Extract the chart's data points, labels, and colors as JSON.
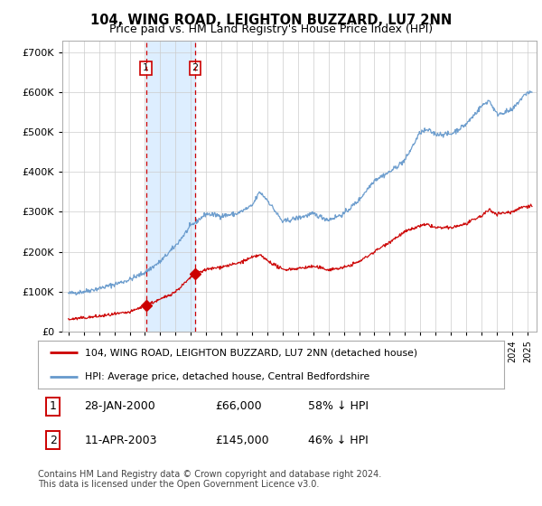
{
  "title": "104, WING ROAD, LEIGHTON BUZZARD, LU7 2NN",
  "subtitle": "Price paid vs. HM Land Registry's House Price Index (HPI)",
  "ytick_values": [
    0,
    100000,
    200000,
    300000,
    400000,
    500000,
    600000,
    700000
  ],
  "ytick_labels": [
    "£0",
    "£100K",
    "£200K",
    "£300K",
    "£400K",
    "£500K",
    "£600K",
    "£700K"
  ],
  "ylim": [
    0,
    730000
  ],
  "xlim_start": 1994.6,
  "xlim_end": 2025.6,
  "legend_line1": "104, WING ROAD, LEIGHTON BUZZARD, LU7 2NN (detached house)",
  "legend_line2": "HPI: Average price, detached house, Central Bedfordshire",
  "sale1_date_label": "28-JAN-2000",
  "sale1_price_label": "£66,000",
  "sale1_pct_label": "58% ↓ HPI",
  "sale1_year": 2000.07,
  "sale1_price": 66000,
  "sale2_date_label": "11-APR-2003",
  "sale2_price_label": "£145,000",
  "sale2_pct_label": "46% ↓ HPI",
  "sale2_year": 2003.28,
  "sale2_price": 145000,
  "red_line_color": "#cc0000",
  "blue_line_color": "#6699cc",
  "shade_color": "#ddeeff",
  "dashed_line_color": "#cc0000",
  "grid_color": "#cccccc",
  "background_color": "#ffffff",
  "footnote": "Contains HM Land Registry data © Crown copyright and database right 2024.\nThis data is licensed under the Open Government Licence v3.0."
}
